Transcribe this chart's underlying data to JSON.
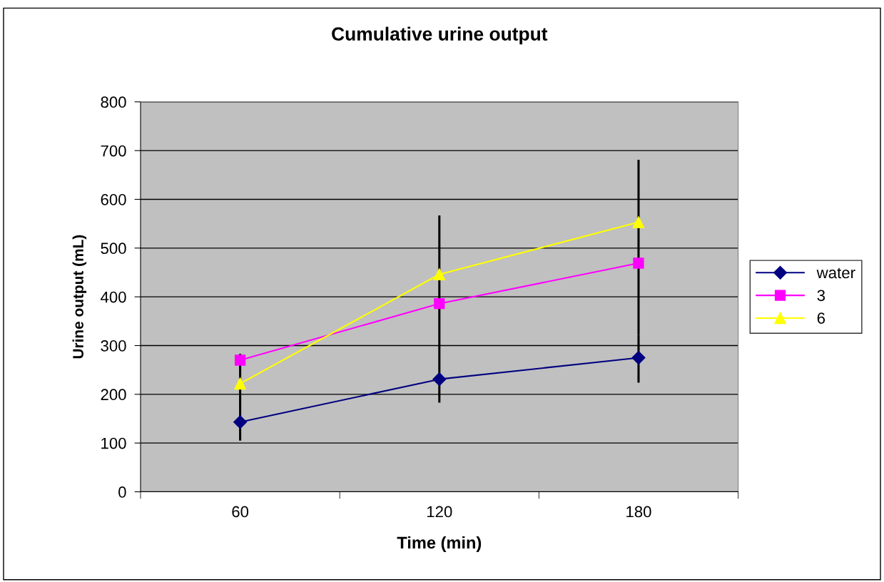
{
  "chart_data": {
    "type": "line",
    "title": "Cumulative urine output",
    "xlabel": "Time (min)",
    "ylabel": "Urine output (mL)",
    "categories": [
      "60",
      "120",
      "180"
    ],
    "series": [
      {
        "name": "water",
        "color": "#000080",
        "marker": "diamond",
        "values": [
          143,
          231,
          275
        ],
        "errors": [
          [
            105,
            153
          ],
          [
            183,
            251
          ],
          [
            224,
            322
          ]
        ]
      },
      {
        "name": "3",
        "color": "#ff00ff",
        "marker": "square",
        "values": [
          270,
          386,
          469
        ],
        "errors": [
          [
            153,
            283
          ],
          [
            251,
            446
          ],
          [
            322,
            553
          ]
        ]
      },
      {
        "name": "6",
        "color": "#ffff00",
        "marker": "triangle",
        "values": [
          222,
          446,
          553
        ],
        "errors": [
          null,
          [
            446,
            567
          ],
          [
            553,
            681
          ]
        ]
      }
    ],
    "ylim": [
      0,
      800
    ],
    "yticks": [
      0,
      100,
      200,
      300,
      400,
      500,
      600,
      700,
      800
    ],
    "grid": "y",
    "legend": "right"
  }
}
